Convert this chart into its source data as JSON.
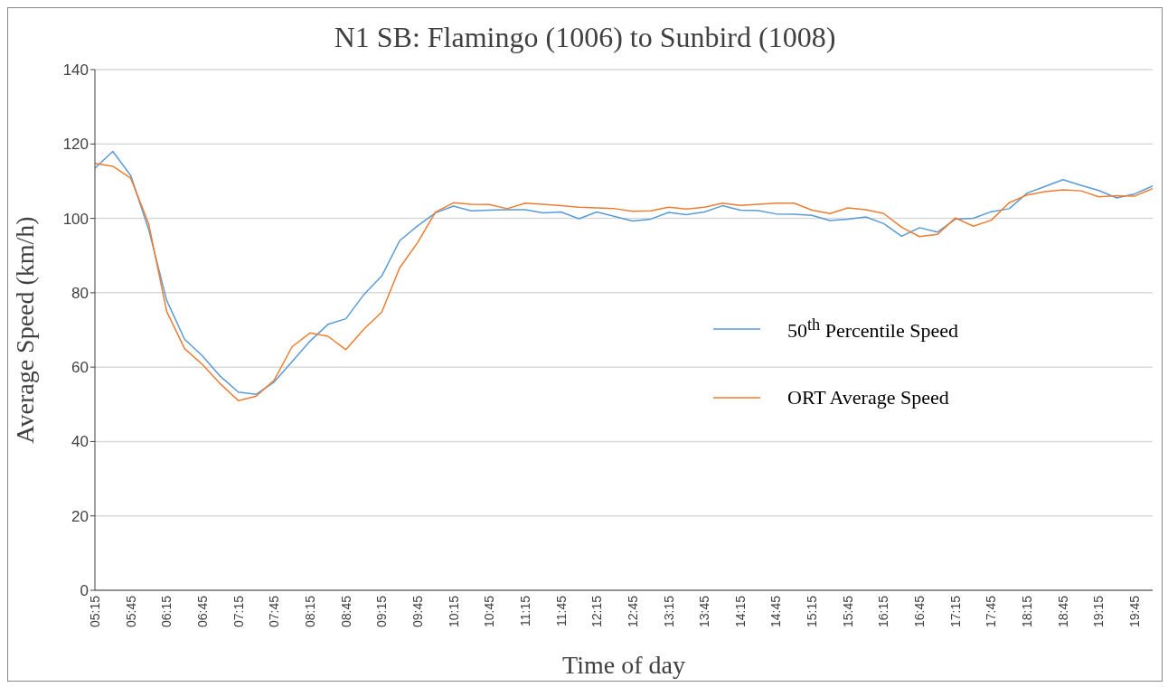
{
  "chart_data": {
    "type": "line",
    "title": "N1 SB: Flamingo (1006) to Sunbird (1008)",
    "xlabel": "Time of day",
    "ylabel": "Average Speed (km/h)",
    "categories": [
      "05:15",
      null,
      "05:45",
      null,
      "06:15",
      null,
      "06:45",
      null,
      "07:15",
      null,
      "07:45",
      null,
      "08:15",
      null,
      "08:45",
      null,
      "09:15",
      null,
      "09:45",
      null,
      "10:15",
      null,
      "10:45",
      null,
      "11:15",
      null,
      "11:45",
      null,
      "12:15",
      null,
      "12:45",
      null,
      "13:15",
      null,
      "13:45",
      null,
      "14:15",
      null,
      "14:45",
      null,
      "15:15",
      null,
      "15:45",
      null,
      "16:15",
      null,
      "16:45",
      null,
      "17:15",
      null,
      "17:45",
      null,
      "18:15",
      null,
      "18:45",
      null,
      "19:15",
      null,
      "19:45",
      null
    ],
    "series": [
      {
        "name": "50$^{th}$ Percentile Speed",
        "color": "#5b9bd5",
        "values": [
          113.5,
          118,
          111.5,
          97,
          78,
          67.5,
          63,
          57.5,
          53.3,
          52.7,
          56,
          61.5,
          67,
          71.5,
          73,
          79.5,
          84.5,
          94,
          98,
          101.5,
          103.3,
          102,
          102.2,
          102.3,
          102.3,
          101.5,
          101.7,
          99.9,
          101.7,
          100.5,
          99.3,
          99.8,
          101.6,
          101,
          101.7,
          103.4,
          102.2,
          102.1,
          101.2,
          101.1,
          100.8,
          99.4,
          99.8,
          100.4,
          98.6,
          95.2,
          97.5,
          96.3,
          99.8,
          100,
          101.8,
          102.6,
          106.8,
          108.6,
          110.4,
          108.9,
          107.5,
          105.5,
          106.6,
          108.7
        ]
      },
      {
        "name": "ORT Average Speed",
        "color": "#ed7d31",
        "values": [
          114.8,
          114,
          110.8,
          98.5,
          75,
          65,
          60.7,
          55.5,
          51,
          52.2,
          56.5,
          65.5,
          69.2,
          68.3,
          64.7,
          70.2,
          74.8,
          86.7,
          93.5,
          101.7,
          104.2,
          103.8,
          103.7,
          102.6,
          104.1,
          103.8,
          103.4,
          103,
          102.8,
          102.6,
          101.9,
          102,
          103,
          102.5,
          103,
          104.1,
          103.5,
          103.8,
          104.1,
          104.1,
          102.2,
          101.3,
          102.8,
          102.3,
          101.3,
          97.6,
          95.1,
          95.7,
          100.1,
          97.9,
          99.5,
          104.2,
          106.3,
          107.2,
          107.7,
          107.4,
          105.8,
          106.1,
          106,
          108
        ]
      }
    ],
    "ylim": [
      0,
      140
    ],
    "yticks": [
      0,
      20,
      40,
      60,
      80,
      100,
      120,
      140
    ],
    "grid": "y",
    "legend": "right",
    "marker": "none",
    "line_style": "solid"
  }
}
